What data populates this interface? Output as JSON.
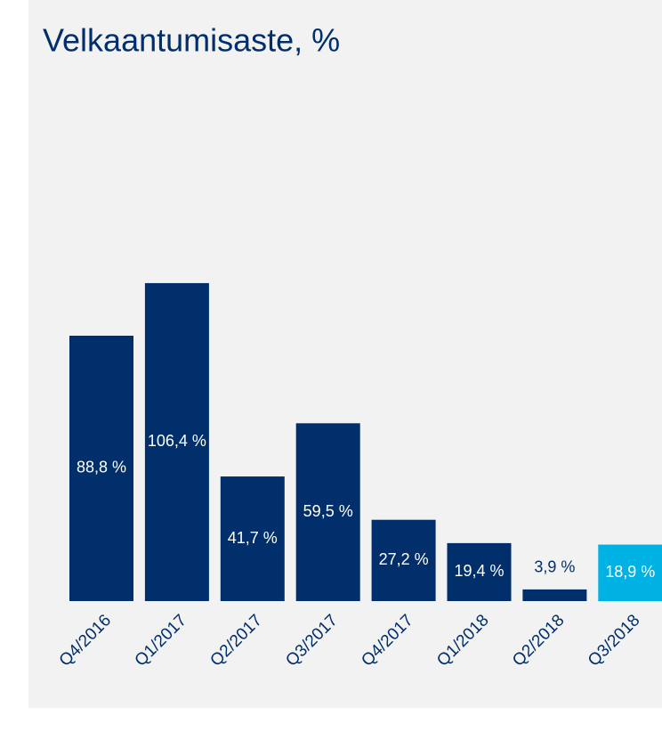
{
  "chart_data": {
    "type": "bar",
    "title": "Velkaantumisaste, %",
    "categories": [
      "Q4/2016",
      "Q1/2017",
      "Q2/2017",
      "Q3/2017",
      "Q4/2017",
      "Q1/2018",
      "Q2/2018",
      "Q3/2018"
    ],
    "values": [
      88.8,
      106.4,
      41.7,
      59.5,
      27.2,
      19.4,
      3.9,
      18.9
    ],
    "value_labels": [
      "88,8 %",
      "106,4 %",
      "41,7 %",
      "59,5 %",
      "27,2 %",
      "19,4 %",
      "3,9 %",
      "18,9 %"
    ],
    "colors": [
      "#002f6c",
      "#002f6c",
      "#002f6c",
      "#002f6c",
      "#002f6c",
      "#002f6c",
      "#002f6c",
      "#00b2e3"
    ]
  }
}
